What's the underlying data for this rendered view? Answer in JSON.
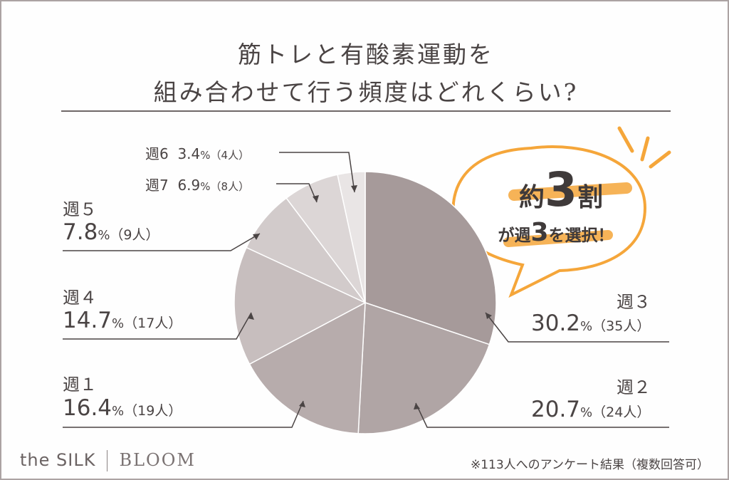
{
  "title_lines": [
    "筋トレと有酸素運動を",
    "組み合わせて行う頻度はどれくらい?"
  ],
  "callout": {
    "line1_a": "約",
    "line1_b": "3",
    "line1_c": "割",
    "line2_a": "が週",
    "line2_b": "3",
    "line2_c": "を選択！"
  },
  "brand": {
    "part1": "the SILK",
    "part2": "BLOOM"
  },
  "footnote": "※113人へのアンケート結果（複数回答可）",
  "colors": {
    "accent": "#f5a63a",
    "text": "#4a4444"
  },
  "chart_data": {
    "type": "pie",
    "start_angle": 0,
    "direction": "clockwise",
    "slices": [
      {
        "key": "w3",
        "label": "週３",
        "pct": 30.2,
        "pct_text": "30.2",
        "unit": "%",
        "count": "（35人）",
        "color": "#a69a9a"
      },
      {
        "key": "w2",
        "label": "週２",
        "pct": 20.7,
        "pct_text": "20.7",
        "unit": "%",
        "count": "（24人）",
        "color": "#b0a5a5"
      },
      {
        "key": "w1",
        "label": "週１",
        "pct": 16.4,
        "pct_text": "16.4",
        "unit": "%",
        "count": "（19人）",
        "color": "#b7acac"
      },
      {
        "key": "w4",
        "label": "週４",
        "pct": 14.7,
        "pct_text": "14.7",
        "unit": "%",
        "count": "（17人）",
        "color": "#c7bebe"
      },
      {
        "key": "w5",
        "label": "週５",
        "pct": 7.8,
        "pct_text": "7.8",
        "unit": "%",
        "count": "（9人）",
        "color": "#d2cbcb"
      },
      {
        "key": "w7",
        "label": "週7",
        "pct": 6.9,
        "pct_text": "6.9",
        "unit": "%",
        "count": "（8人）",
        "color": "#dcd6d6"
      },
      {
        "key": "w6",
        "label": "週6",
        "pct": 3.4,
        "pct_text": "3.4",
        "unit": "%",
        "count": "（4人）",
        "color": "#e9e5e5"
      }
    ]
  }
}
